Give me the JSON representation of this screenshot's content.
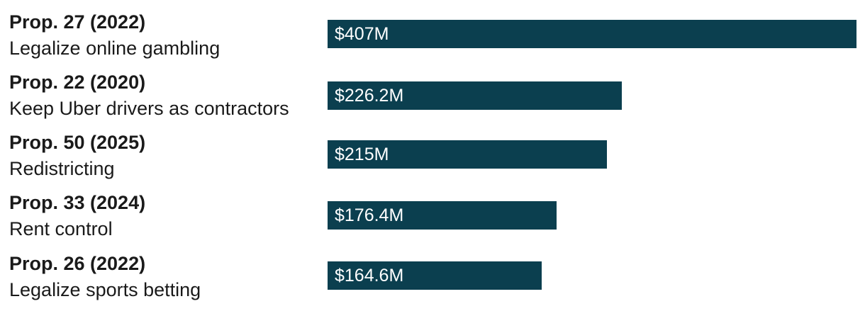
{
  "chart_data": {
    "type": "bar",
    "orientation": "horizontal",
    "categories": [
      {
        "title": "Prop. 27 (2022)",
        "description": "Legalize online gambling"
      },
      {
        "title": "Prop. 22 (2020)",
        "description": "Keep Uber drivers as contractors"
      },
      {
        "title": "Prop. 50 (2025)",
        "description": "Redistricting"
      },
      {
        "title": "Prop. 33 (2024)",
        "description": "Rent control"
      },
      {
        "title": "Prop. 26 (2022)",
        "description": "Legalize sports betting"
      }
    ],
    "values": [
      407,
      226.2,
      215,
      176.4,
      164.6
    ],
    "value_labels": [
      "$407M",
      "$226.2M",
      "$215M",
      "$176.4M",
      "$164.6M"
    ],
    "unit": "$M",
    "xlim": [
      0,
      407
    ],
    "grid": false,
    "legend": "none"
  },
  "colors": {
    "bar": "#0b3f4f",
    "bar_label": "#ffffff",
    "text": "#1a1a1a"
  }
}
